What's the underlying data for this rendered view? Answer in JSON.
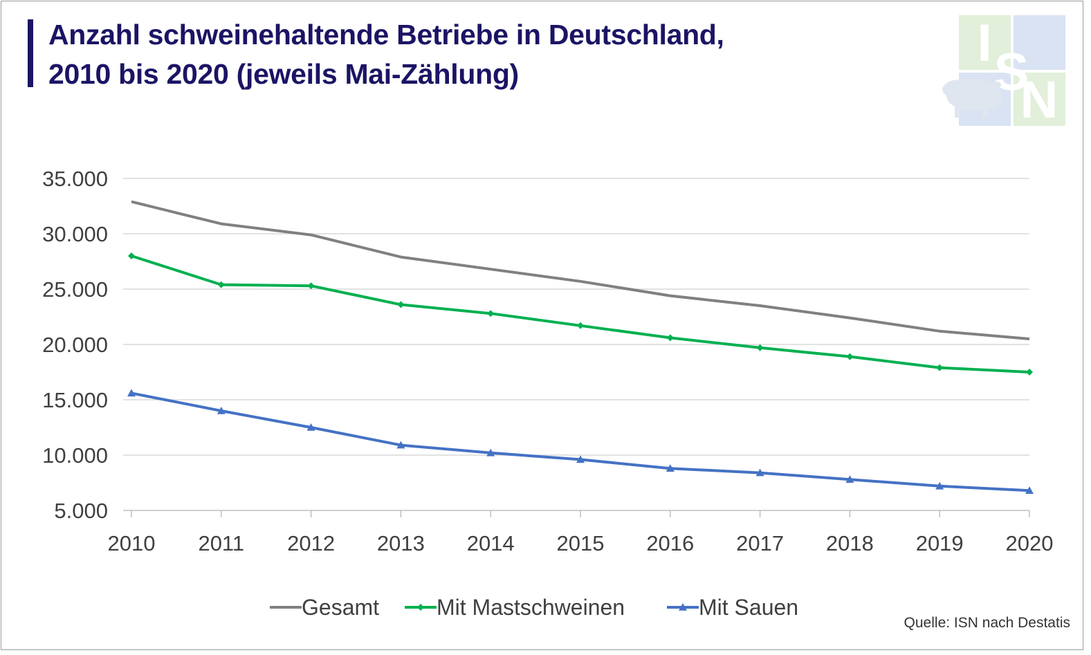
{
  "title": {
    "line1": "Anzahl schweinehaltende Betriebe in Deutschland,",
    "line2": "2010 bis 2020 (jeweils Mai-Zählung)"
  },
  "logo": {
    "letters": [
      "I",
      "S",
      "N"
    ],
    "icon": "pig-icon"
  },
  "source": "Quelle: ISN nach Destatis",
  "colors": {
    "title": "#1b1464",
    "gesamt": "#808080",
    "mast": "#00b050",
    "sauen": "#4472c4",
    "grid": "#d9d9d9",
    "logo_green": "#e2efda",
    "logo_blue": "#dae3f3"
  },
  "chart_data": {
    "type": "line",
    "title": "Anzahl schweinehaltende Betriebe in Deutschland, 2010 bis 2020 (jeweils Mai-Zählung)",
    "x": [
      "2010",
      "2011",
      "2012",
      "2013",
      "2014",
      "2015",
      "2016",
      "2017",
      "2018",
      "2019",
      "2020"
    ],
    "y_ticks": [
      "5.000",
      "10.000",
      "15.000",
      "20.000",
      "25.000",
      "30.000",
      "35.000"
    ],
    "ylim": [
      5000,
      35000
    ],
    "grid": true,
    "legend_position": "bottom",
    "series": [
      {
        "name": "Gesamt",
        "marker": "none",
        "color": "#808080",
        "values": [
          32900,
          30900,
          29900,
          27900,
          26800,
          25700,
          24400,
          23500,
          22400,
          21200,
          20500
        ]
      },
      {
        "name": "Mit Mastschweinen",
        "marker": "diamond",
        "color": "#00b050",
        "values": [
          28000,
          25400,
          25300,
          23600,
          22800,
          21700,
          20600,
          19700,
          18900,
          17900,
          17500
        ]
      },
      {
        "name": "Mit Sauen",
        "marker": "triangle",
        "color": "#4472c4",
        "values": [
          15600,
          14000,
          12500,
          10900,
          10200,
          9600,
          8800,
          8400,
          7800,
          7200,
          6800
        ]
      }
    ]
  }
}
